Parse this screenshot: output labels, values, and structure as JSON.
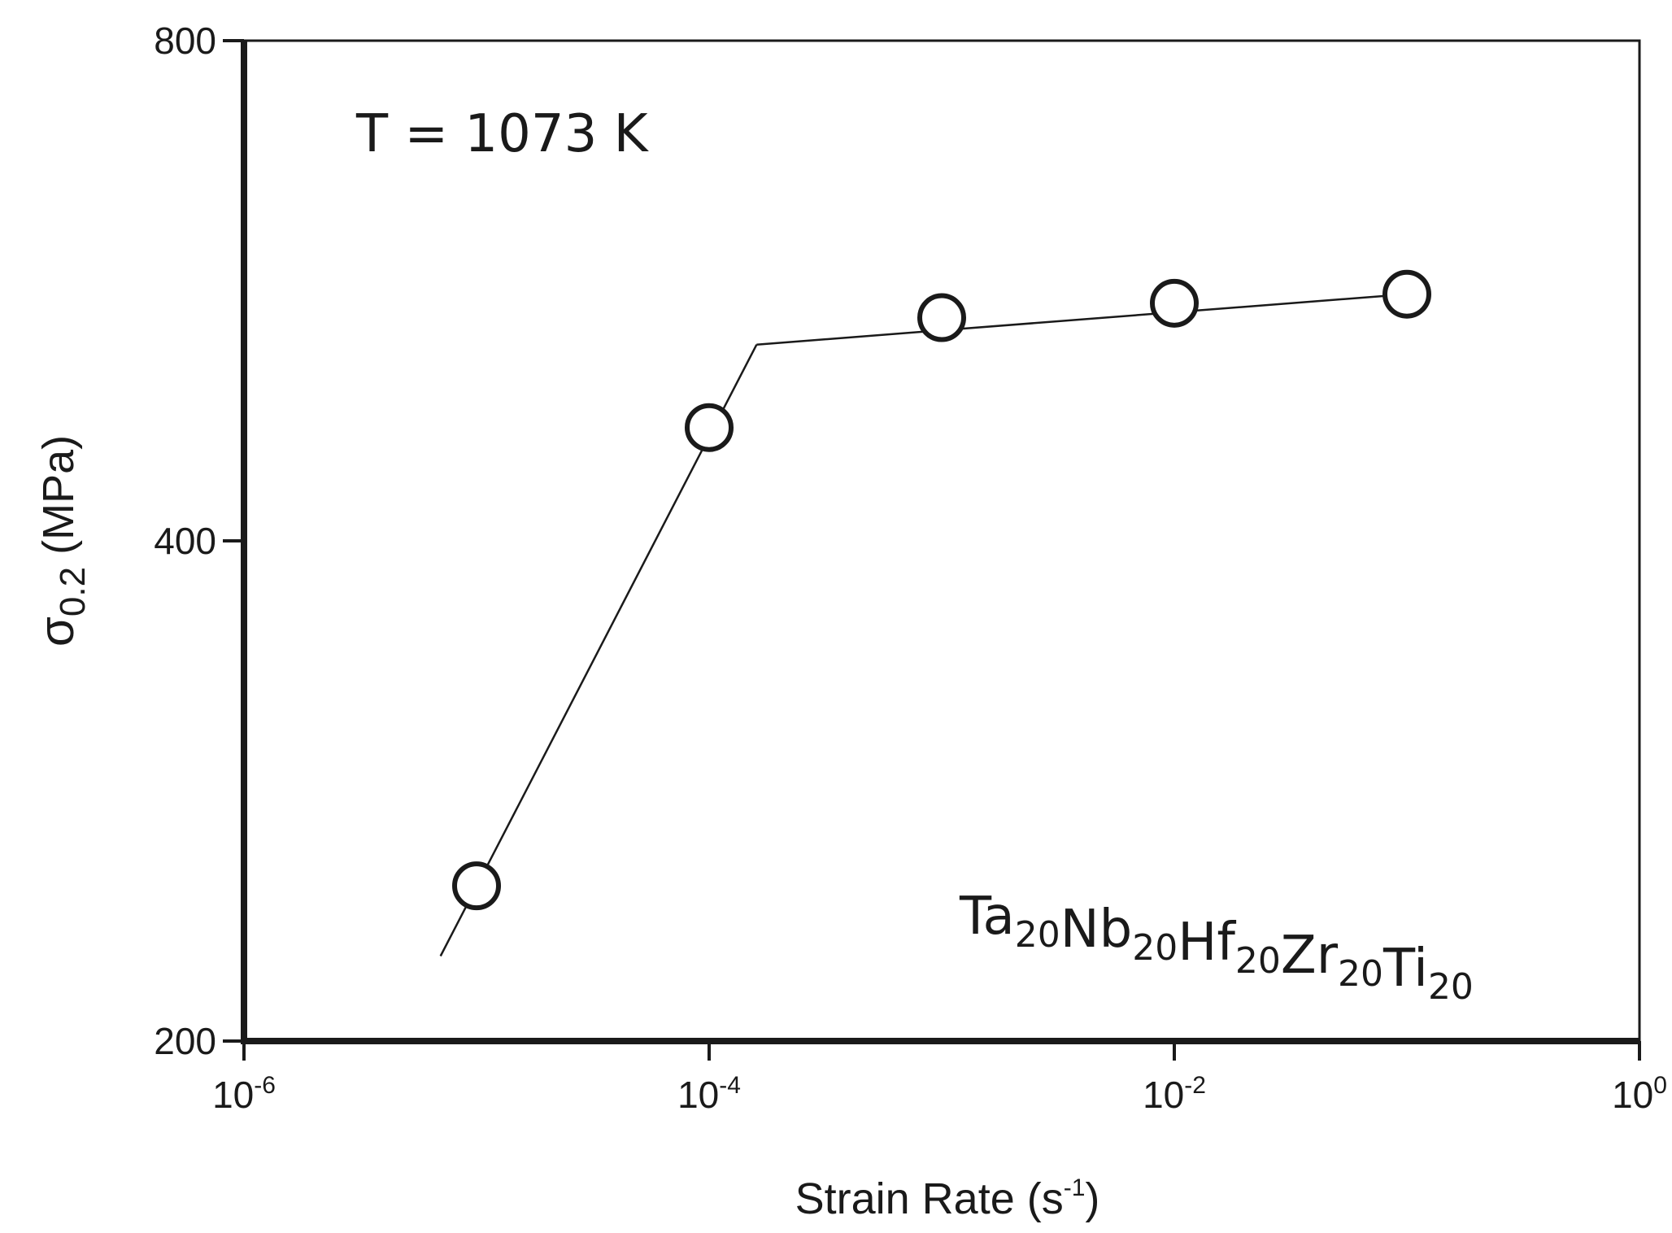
{
  "chart_data": {
    "type": "scatter",
    "x_scale": "log",
    "y_scale": "log",
    "xlim": [
      1e-06,
      1
    ],
    "ylim": [
      200,
      800
    ],
    "grid": false,
    "x_ticks": [
      {
        "value": 1e-06,
        "base": "10",
        "exp": "-6"
      },
      {
        "value": 0.0001,
        "base": "10",
        "exp": "-4"
      },
      {
        "value": 0.01,
        "base": "10",
        "exp": "-2"
      },
      {
        "value": 1,
        "base": "10",
        "exp": "0"
      }
    ],
    "y_ticks": [
      {
        "value": 200,
        "label": "200"
      },
      {
        "value": 400,
        "label": "400"
      },
      {
        "value": 800,
        "label": "800"
      }
    ],
    "xlabel": {
      "main": "Strain Rate  (s",
      "sup": "-1",
      "close": ")"
    },
    "ylabel": {
      "symbol": "σ",
      "sub": "0.2",
      "unit": "  (MPa)"
    },
    "series": [
      {
        "marker": "open-circle",
        "x": [
          1e-05,
          0.0001,
          0.001,
          0.01,
          0.1
        ],
        "y": [
          248,
          468,
          545,
          556,
          563
        ]
      }
    ],
    "fit_line": {
      "x": [
        7e-06,
        0.00016,
        0.1
      ],
      "y": [
        225,
        525,
        563
      ]
    },
    "annotations": {
      "temperature": "T = 1073 K",
      "alloy": [
        {
          "el": "Ta",
          "n": "20"
        },
        {
          "el": "Nb",
          "n": "20"
        },
        {
          "el": "Hf",
          "n": "20"
        },
        {
          "el": "Zr",
          "n": "20"
        },
        {
          "el": "Ti",
          "n": "20"
        }
      ]
    }
  }
}
